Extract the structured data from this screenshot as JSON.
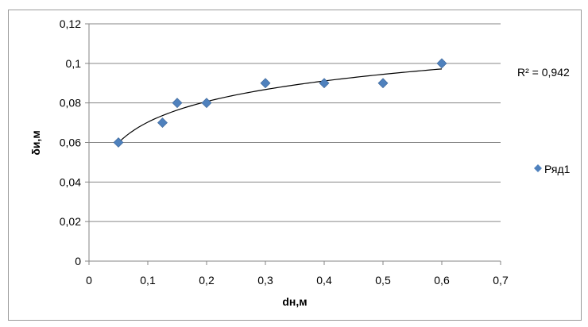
{
  "chart_data": {
    "type": "scatter",
    "xlabel": "dн,м",
    "ylabel": "δи,м",
    "xlim": [
      0,
      0.7
    ],
    "ylim": [
      0,
      0.12
    ],
    "xticks": [
      0,
      0.1,
      0.2,
      0.3,
      0.4,
      0.5,
      0.6,
      0.7
    ],
    "yticks": [
      0,
      0.02,
      0.04,
      0.06,
      0.08,
      0.1,
      0.12
    ],
    "xtick_labels": [
      "0",
      "0,1",
      "0,2",
      "0,3",
      "0,4",
      "0,5",
      "0,6",
      "0,7"
    ],
    "ytick_labels": [
      "0",
      "0,02",
      "0,04",
      "0,06",
      "0,08",
      "0,1",
      "0,12"
    ],
    "grid": "horizontal",
    "legend_position": "right",
    "series": [
      {
        "name": "Ряд1",
        "color": "#4f81bd",
        "marker": "diamond",
        "x": [
          0.05,
          0.125,
          0.15,
          0.2,
          0.3,
          0.4,
          0.5,
          0.6
        ],
        "y": [
          0.06,
          0.07,
          0.08,
          0.08,
          0.09,
          0.09,
          0.09,
          0.1
        ]
      }
    ],
    "trendline": {
      "type": "logarithmic",
      "color": "#000000",
      "label": "R² = 0,942"
    }
  }
}
